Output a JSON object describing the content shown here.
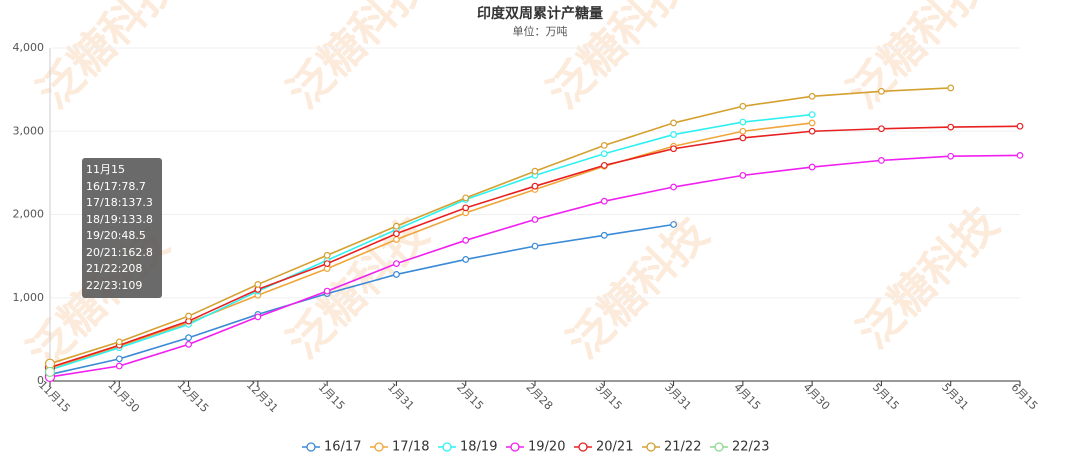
{
  "chart_data": {
    "type": "line",
    "title": "印度双周累计产糖量",
    "subtitle": "单位：万吨",
    "watermark": "泛糖科技",
    "categories": [
      "11月15",
      "11月30",
      "12月15",
      "12月31",
      "1月15",
      "1月31",
      "2月15",
      "2月28",
      "3月15",
      "3月31",
      "4月15",
      "4月30",
      "5月15",
      "5月31",
      "6月15"
    ],
    "ylim": [
      0,
      4000
    ],
    "yticks": [
      0,
      {
        "value": 1000,
        "label": "1,000"
      },
      {
        "value": 2000,
        "label": "2,000"
      },
      {
        "value": 3000,
        "label": "3,000"
      },
      {
        "value": 4000,
        "label": "4,000"
      }
    ],
    "grid": true,
    "legend": "bottom",
    "series": [
      {
        "name": "16/17",
        "color": "#3a8ad6",
        "values": [
          78.7,
          266,
          520,
          800,
          1050,
          1280,
          1460,
          1620,
          1750,
          1880,
          null,
          null,
          null,
          null,
          null
        ]
      },
      {
        "name": "17/18",
        "color": "#f0a53a",
        "values": [
          137.3,
          420,
          700,
          1030,
          1350,
          1700,
          2020,
          2300,
          2580,
          2820,
          3000,
          3100,
          null,
          null,
          null
        ]
      },
      {
        "name": "18/19",
        "color": "#2ff0f0",
        "values": [
          133.8,
          400,
          680,
          1080,
          1450,
          1820,
          2180,
          2470,
          2730,
          2960,
          3110,
          3200,
          null,
          null,
          null
        ]
      },
      {
        "name": "19/20",
        "color": "#f020f0",
        "values": [
          48.5,
          180,
          440,
          770,
          1080,
          1410,
          1690,
          1940,
          2160,
          2330,
          2470,
          2570,
          2650,
          2700,
          2710
        ]
      },
      {
        "name": "20/21",
        "color": "#e82020",
        "values": [
          162.8,
          430,
          720,
          1100,
          1410,
          1770,
          2080,
          2340,
          2590,
          2790,
          2920,
          3000,
          3030,
          3050,
          3060
        ]
      },
      {
        "name": "21/22",
        "color": "#d4a030",
        "values": [
          208,
          470,
          780,
          1160,
          1510,
          1860,
          2200,
          2520,
          2830,
          3100,
          3300,
          3420,
          3480,
          3520,
          null
        ]
      },
      {
        "name": "22/23",
        "color": "#8fd88f",
        "values": [
          109,
          null,
          null,
          null,
          null,
          null,
          null,
          null,
          null,
          null,
          null,
          null,
          null,
          null,
          null
        ]
      }
    ],
    "tooltip": {
      "category": 0
    }
  }
}
